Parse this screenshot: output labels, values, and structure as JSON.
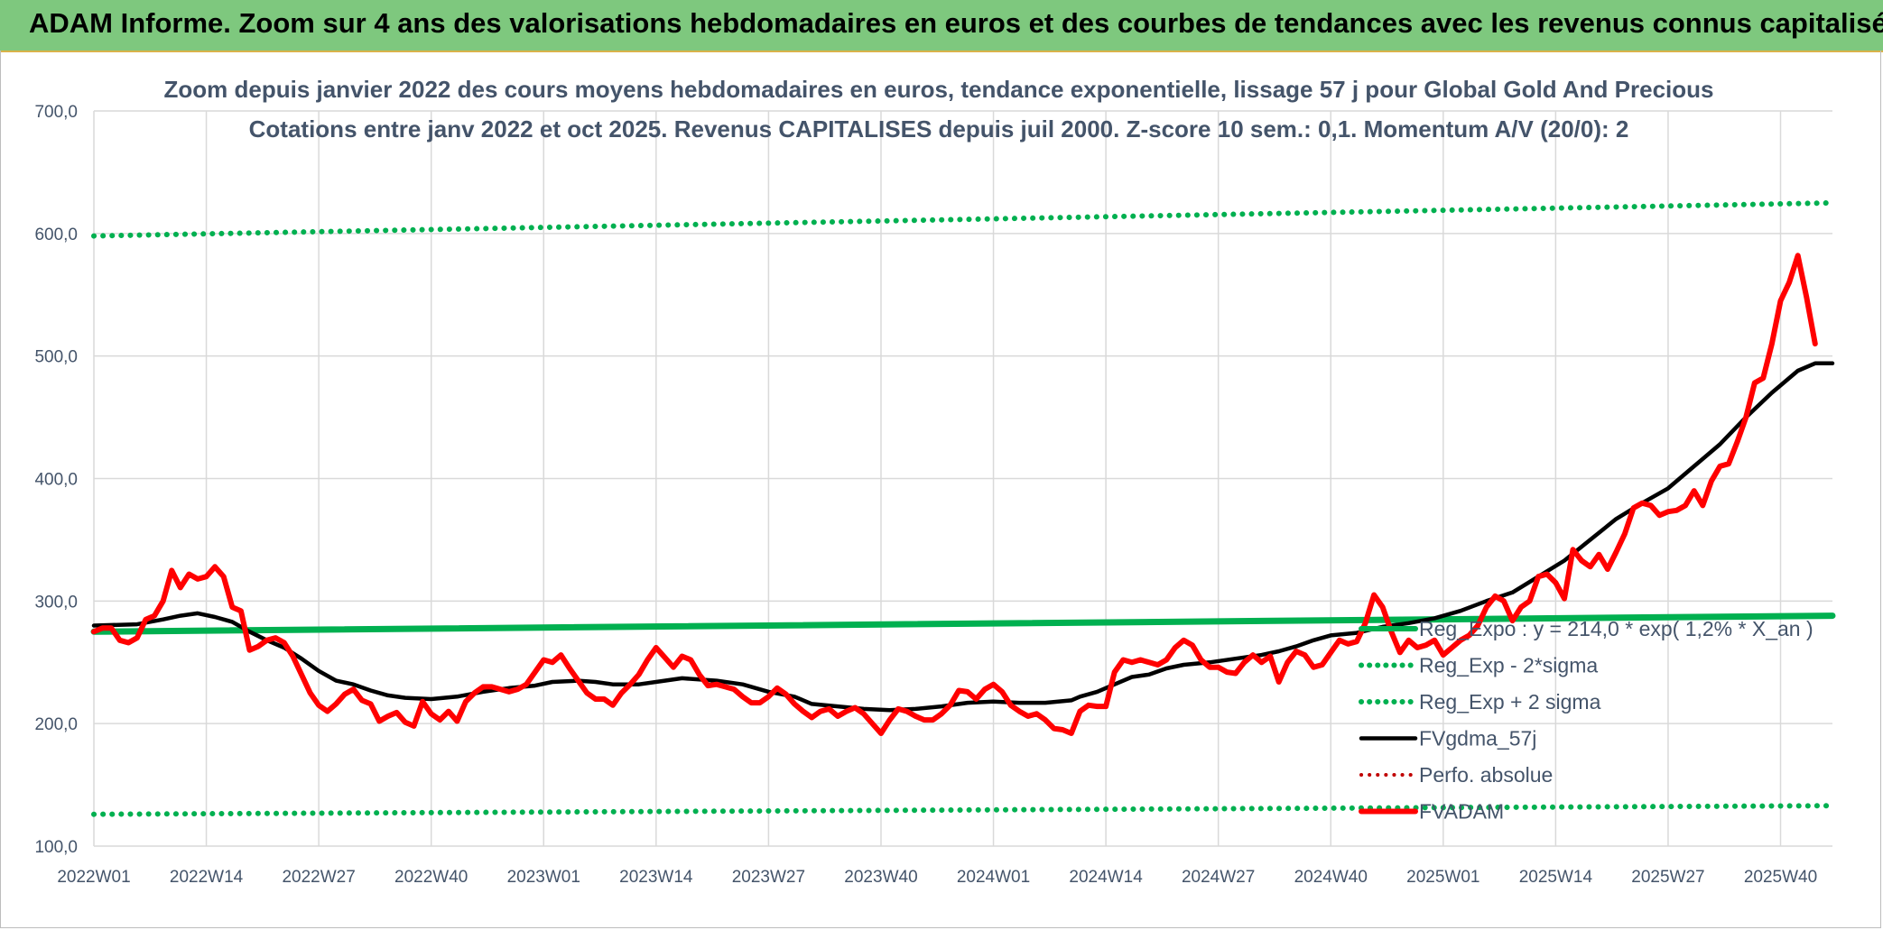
{
  "header": {
    "banner_title": "ADAM Informe. Zoom sur 4 ans des valorisations hebdomadaires en euros et des courbes de tendances avec les revenus connus capitalisés"
  },
  "chart_data": {
    "type": "line",
    "title_line1": "Zoom depuis janvier 2022 des cours moyens hebdomadaires en euros, tendance exponentielle, lissage 57 j pour Global Gold And Precious",
    "title_line2": "Cotations entre janv 2022 et oct 2025. Revenus CAPITALISES depuis juil 2000. Z-score 10 sem.: 0,1. Momentum A/V (20/0): 2",
    "ylim": [
      100,
      700
    ],
    "y_ticks": [
      "100,0",
      "200,0",
      "300,0",
      "400,0",
      "500,0",
      "600,0",
      "700,0"
    ],
    "x_ticks": [
      "2022W01",
      "2022W14",
      "2022W27",
      "2022W40",
      "2023W01",
      "2023W14",
      "2023W27",
      "2023W40",
      "2024W01",
      "2024W14",
      "2024W27",
      "2024W40",
      "2025W01",
      "2025W14",
      "2025W27",
      "2025W40"
    ],
    "x_range_weeks": [
      0,
      201
    ],
    "grid": true,
    "legend_position": "right",
    "series": [
      {
        "name": "Reg_Expo : y = 214,0 * exp( 1,2% * X_an )",
        "style": "solid",
        "color": "#00b050",
        "points": [
          [
            0,
            275
          ],
          [
            201,
            288
          ]
        ]
      },
      {
        "name": "Reg_Exp - 2*sigma",
        "style": "dotted",
        "color": "#00b050",
        "points": [
          [
            0,
            126
          ],
          [
            201,
            133
          ]
        ]
      },
      {
        "name": "Reg_Exp + 2 sigma",
        "style": "dotted",
        "color": "#00b050",
        "points": [
          [
            0,
            598
          ],
          [
            201,
            625
          ]
        ]
      },
      {
        "name": "FVgdma_57j",
        "style": "solid",
        "color": "#000000",
        "points": [
          [
            0,
            280
          ],
          [
            5,
            281
          ],
          [
            8,
            285
          ],
          [
            10,
            288
          ],
          [
            12,
            290
          ],
          [
            14,
            287
          ],
          [
            16,
            283
          ],
          [
            18,
            275
          ],
          [
            20,
            268
          ],
          [
            22,
            262
          ],
          [
            24,
            253
          ],
          [
            26,
            243
          ],
          [
            28,
            235
          ],
          [
            30,
            232
          ],
          [
            32,
            227
          ],
          [
            34,
            223
          ],
          [
            36,
            221
          ],
          [
            39,
            220
          ],
          [
            42,
            222
          ],
          [
            45,
            226
          ],
          [
            48,
            229
          ],
          [
            51,
            231
          ],
          [
            53,
            234
          ],
          [
            56,
            235
          ],
          [
            58,
            234
          ],
          [
            60,
            232
          ],
          [
            63,
            232
          ],
          [
            66,
            235
          ],
          [
            68,
            237
          ],
          [
            70,
            236
          ],
          [
            72,
            235
          ],
          [
            75,
            232
          ],
          [
            78,
            226
          ],
          [
            81,
            222
          ],
          [
            83,
            216
          ],
          [
            86,
            214
          ],
          [
            89,
            212
          ],
          [
            92,
            211
          ],
          [
            95,
            212
          ],
          [
            98,
            214
          ],
          [
            101,
            217
          ],
          [
            104,
            218
          ],
          [
            107,
            217
          ],
          [
            110,
            217
          ],
          [
            113,
            219
          ],
          [
            114,
            222
          ],
          [
            116,
            226
          ],
          [
            118,
            232
          ],
          [
            120,
            238
          ],
          [
            122,
            240
          ],
          [
            124,
            245
          ],
          [
            126,
            248
          ],
          [
            129,
            250
          ],
          [
            132,
            253
          ],
          [
            135,
            256
          ],
          [
            137,
            259
          ],
          [
            139,
            263
          ],
          [
            141,
            268
          ],
          [
            143,
            272
          ],
          [
            146,
            274
          ],
          [
            149,
            279
          ],
          [
            152,
            282
          ],
          [
            155,
            286
          ],
          [
            158,
            292
          ],
          [
            161,
            300
          ],
          [
            164,
            307
          ],
          [
            167,
            320
          ],
          [
            170,
            333
          ],
          [
            173,
            350
          ],
          [
            176,
            367
          ],
          [
            179,
            380
          ],
          [
            182,
            392
          ],
          [
            185,
            410
          ],
          [
            188,
            428
          ],
          [
            191,
            450
          ],
          [
            194,
            470
          ],
          [
            197,
            488
          ],
          [
            199,
            494
          ],
          [
            201,
            494
          ]
        ]
      },
      {
        "name": "Perfo. absolue",
        "style": "dotted",
        "color": "#c00000",
        "points": []
      },
      {
        "name": "FVADAM",
        "style": "solid",
        "color": "#ff0000",
        "points": [
          [
            0,
            275
          ],
          [
            1,
            278
          ],
          [
            2,
            278
          ],
          [
            3,
            268
          ],
          [
            4,
            266
          ],
          [
            5,
            270
          ],
          [
            6,
            285
          ],
          [
            7,
            288
          ],
          [
            8,
            300
          ],
          [
            9,
            325
          ],
          [
            10,
            311
          ],
          [
            11,
            322
          ],
          [
            12,
            318
          ],
          [
            13,
            320
          ],
          [
            14,
            328
          ],
          [
            15,
            320
          ],
          [
            16,
            295
          ],
          [
            17,
            292
          ],
          [
            18,
            260
          ],
          [
            19,
            263
          ],
          [
            20,
            268
          ],
          [
            21,
            270
          ],
          [
            22,
            266
          ],
          [
            23,
            255
          ],
          [
            24,
            240
          ],
          [
            25,
            225
          ],
          [
            26,
            215
          ],
          [
            27,
            210
          ],
          [
            28,
            216
          ],
          [
            29,
            224
          ],
          [
            30,
            228
          ],
          [
            31,
            219
          ],
          [
            32,
            216
          ],
          [
            33,
            202
          ],
          [
            34,
            206
          ],
          [
            35,
            209
          ],
          [
            36,
            201
          ],
          [
            37,
            198
          ],
          [
            38,
            218
          ],
          [
            39,
            208
          ],
          [
            40,
            203
          ],
          [
            41,
            210
          ],
          [
            42,
            202
          ],
          [
            43,
            218
          ],
          [
            44,
            225
          ],
          [
            45,
            230
          ],
          [
            46,
            230
          ],
          [
            47,
            228
          ],
          [
            48,
            226
          ],
          [
            49,
            228
          ],
          [
            50,
            232
          ],
          [
            51,
            242
          ],
          [
            52,
            252
          ],
          [
            53,
            250
          ],
          [
            54,
            256
          ],
          [
            55,
            245
          ],
          [
            56,
            235
          ],
          [
            57,
            225
          ],
          [
            58,
            220
          ],
          [
            59,
            220
          ],
          [
            60,
            215
          ],
          [
            61,
            225
          ],
          [
            62,
            232
          ],
          [
            63,
            240
          ],
          [
            64,
            252
          ],
          [
            65,
            262
          ],
          [
            66,
            254
          ],
          [
            67,
            246
          ],
          [
            68,
            255
          ],
          [
            69,
            252
          ],
          [
            70,
            240
          ],
          [
            71,
            231
          ],
          [
            72,
            232
          ],
          [
            73,
            230
          ],
          [
            74,
            228
          ],
          [
            75,
            222
          ],
          [
            76,
            217
          ],
          [
            77,
            217
          ],
          [
            78,
            222
          ],
          [
            79,
            229
          ],
          [
            80,
            224
          ],
          [
            81,
            216
          ],
          [
            82,
            210
          ],
          [
            83,
            205
          ],
          [
            84,
            210
          ],
          [
            85,
            212
          ],
          [
            86,
            206
          ],
          [
            87,
            210
          ],
          [
            88,
            213
          ],
          [
            89,
            208
          ],
          [
            90,
            200
          ],
          [
            91,
            192
          ],
          [
            92,
            203
          ],
          [
            93,
            212
          ],
          [
            94,
            210
          ],
          [
            95,
            206
          ],
          [
            96,
            203
          ],
          [
            97,
            203
          ],
          [
            98,
            208
          ],
          [
            99,
            215
          ],
          [
            100,
            227
          ],
          [
            101,
            226
          ],
          [
            102,
            220
          ],
          [
            103,
            228
          ],
          [
            104,
            232
          ],
          [
            105,
            226
          ],
          [
            106,
            215
          ],
          [
            107,
            210
          ],
          [
            108,
            206
          ],
          [
            109,
            208
          ],
          [
            110,
            203
          ],
          [
            111,
            196
          ],
          [
            112,
            195
          ],
          [
            113,
            192
          ],
          [
            114,
            210
          ],
          [
            115,
            215
          ],
          [
            116,
            214
          ],
          [
            117,
            214
          ],
          [
            118,
            242
          ],
          [
            119,
            252
          ],
          [
            120,
            250
          ],
          [
            121,
            252
          ],
          [
            122,
            250
          ],
          [
            123,
            248
          ],
          [
            124,
            252
          ],
          [
            125,
            262
          ],
          [
            126,
            268
          ],
          [
            127,
            264
          ],
          [
            128,
            252
          ],
          [
            129,
            246
          ],
          [
            130,
            246
          ],
          [
            131,
            242
          ],
          [
            132,
            241
          ],
          [
            133,
            250
          ],
          [
            134,
            256
          ],
          [
            135,
            250
          ],
          [
            136,
            255
          ],
          [
            137,
            234
          ],
          [
            138,
            250
          ],
          [
            139,
            259
          ],
          [
            140,
            256
          ],
          [
            141,
            246
          ],
          [
            142,
            248
          ],
          [
            143,
            258
          ],
          [
            144,
            268
          ],
          [
            145,
            265
          ],
          [
            146,
            267
          ],
          [
            147,
            282
          ],
          [
            148,
            305
          ],
          [
            149,
            295
          ],
          [
            150,
            275
          ],
          [
            151,
            258
          ],
          [
            152,
            268
          ],
          [
            153,
            262
          ],
          [
            154,
            264
          ],
          [
            155,
            268
          ],
          [
            156,
            256
          ],
          [
            157,
            262
          ],
          [
            158,
            268
          ],
          [
            159,
            272
          ],
          [
            160,
            280
          ],
          [
            161,
            295
          ],
          [
            162,
            304
          ],
          [
            163,
            300
          ],
          [
            164,
            284
          ],
          [
            165,
            295
          ],
          [
            166,
            300
          ],
          [
            167,
            320
          ],
          [
            168,
            322
          ],
          [
            169,
            315
          ],
          [
            170,
            302
          ],
          [
            171,
            342
          ],
          [
            172,
            333
          ],
          [
            173,
            328
          ],
          [
            174,
            338
          ],
          [
            175,
            326
          ],
          [
            176,
            340
          ],
          [
            177,
            355
          ],
          [
            178,
            376
          ],
          [
            179,
            380
          ],
          [
            180,
            378
          ],
          [
            181,
            370
          ],
          [
            182,
            373
          ],
          [
            183,
            374
          ],
          [
            184,
            378
          ],
          [
            185,
            390
          ],
          [
            186,
            378
          ],
          [
            187,
            398
          ],
          [
            188,
            410
          ],
          [
            189,
            412
          ],
          [
            190,
            430
          ],
          [
            191,
            450
          ],
          [
            192,
            478
          ],
          [
            193,
            482
          ],
          [
            194,
            510
          ],
          [
            195,
            545
          ],
          [
            196,
            560
          ],
          [
            197,
            582
          ],
          [
            198,
            548
          ],
          [
            199,
            510
          ]
        ]
      }
    ]
  }
}
